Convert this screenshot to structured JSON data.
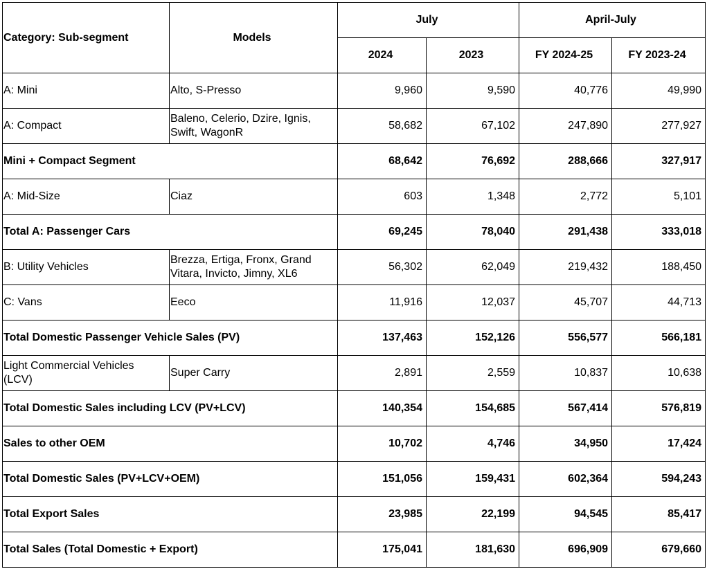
{
  "header": {
    "category": "Category: Sub-segment",
    "models": "Models",
    "groups": [
      "July",
      "April-July"
    ],
    "columns": [
      "2024",
      "2023",
      "FY 2024-25",
      "FY 2023-24"
    ]
  },
  "rows": [
    {
      "label": "A: Mini",
      "models": "Alto, S-Presso",
      "values": [
        "9,960",
        "9,590",
        "40,776",
        "49,990"
      ]
    },
    {
      "label": "A: Compact",
      "models": "Baleno, Celerio, Dzire, Ignis, Swift, WagonR",
      "values": [
        "58,682",
        "67,102",
        "247,890",
        "277,927"
      ]
    },
    {
      "label": "Mini + Compact Segment",
      "bold": true,
      "values": [
        "68,642",
        "76,692",
        "288,666",
        "327,917"
      ]
    },
    {
      "label": "A: Mid-Size",
      "models": "Ciaz",
      "values": [
        "603",
        "1,348",
        "2,772",
        "5,101"
      ]
    },
    {
      "label": "Total A: Passenger Cars",
      "bold": true,
      "values": [
        "69,245",
        "78,040",
        "291,438",
        "333,018"
      ]
    },
    {
      "label": "B: Utility Vehicles",
      "models": "Brezza, Ertiga, Fronx, Grand Vitara, Invicto, Jimny, XL6",
      "values": [
        "56,302",
        "62,049",
        "219,432",
        "188,450"
      ]
    },
    {
      "label": "C: Vans",
      "models": "Eeco",
      "values": [
        "11,916",
        "12,037",
        "45,707",
        "44,713"
      ]
    },
    {
      "label": "Total Domestic Passenger Vehicle Sales (PV)",
      "bold": true,
      "values": [
        "137,463",
        "152,126",
        "556,577",
        "566,181"
      ]
    },
    {
      "label": "Light Commercial Vehicles (LCV)",
      "models": "Super Carry",
      "values": [
        "2,891",
        "2,559",
        "10,837",
        "10,638"
      ]
    },
    {
      "label": "Total Domestic Sales including LCV (PV+LCV)",
      "bold": true,
      "values": [
        "140,354",
        "154,685",
        "567,414",
        "576,819"
      ]
    },
    {
      "label": "Sales to other OEM",
      "bold": true,
      "values": [
        "10,702",
        "4,746",
        "34,950",
        "17,424"
      ]
    },
    {
      "label": "Total Domestic Sales (PV+LCV+OEM)",
      "bold": true,
      "values": [
        "151,056",
        "159,431",
        "602,364",
        "594,243"
      ]
    },
    {
      "label": "Total Export Sales",
      "bold": true,
      "values": [
        "23,985",
        "22,199",
        "94,545",
        "85,417"
      ]
    },
    {
      "label": "Total Sales (Total Domestic + Export)",
      "bold": true,
      "values": [
        "175,041",
        "181,630",
        "696,909",
        "679,660"
      ]
    }
  ]
}
